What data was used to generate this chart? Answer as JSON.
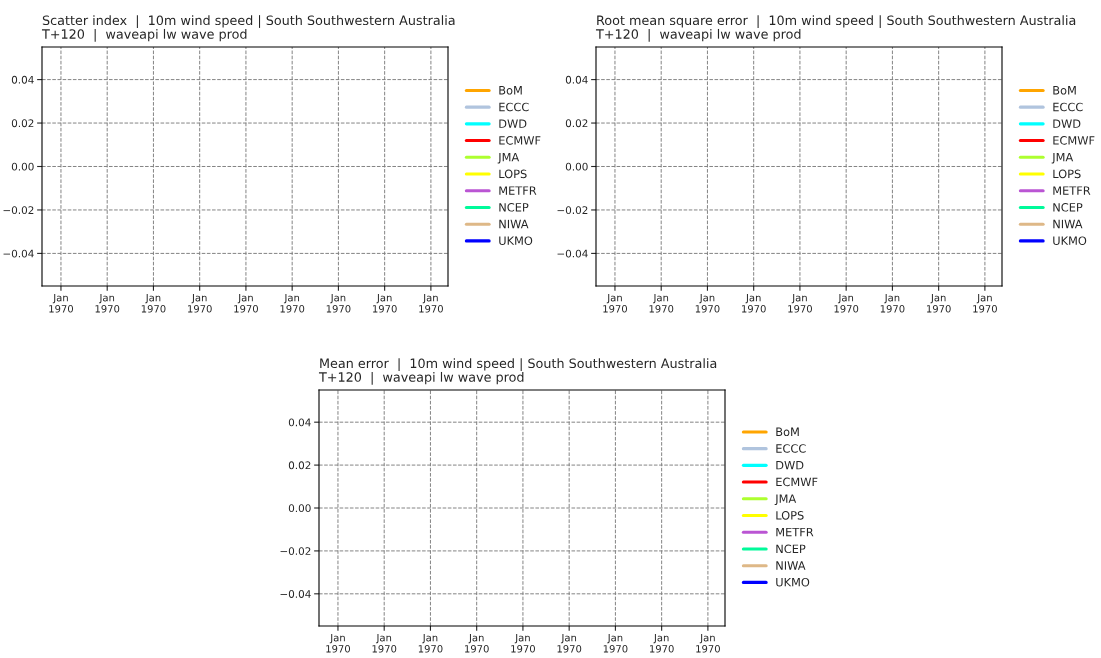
{
  "chart_data": [
    {
      "type": "line",
      "title": "Scatter index  |  10m wind speed | South Southwestern Australia\nT+120  |  waveapi lw wave prod",
      "categories": [
        "Jan\n1970",
        "Jan\n1970",
        "Jan\n1970",
        "Jan\n1970",
        "Jan\n1970",
        "Jan\n1970",
        "Jan\n1970",
        "Jan\n1970",
        "Jan\n1970"
      ],
      "series": [
        {
          "name": "BoM",
          "color": "#ffa500",
          "values": [
            null,
            null,
            null,
            null,
            null,
            null,
            null,
            null,
            null
          ]
        },
        {
          "name": "ECCC",
          "color": "#b0c4de",
          "values": [
            null,
            null,
            null,
            null,
            null,
            null,
            null,
            null,
            null
          ]
        },
        {
          "name": "DWD",
          "color": "#00ffff",
          "values": [
            null,
            null,
            null,
            null,
            null,
            null,
            null,
            null,
            null
          ]
        },
        {
          "name": "ECMWF",
          "color": "#ff0000",
          "values": [
            null,
            null,
            null,
            null,
            null,
            null,
            null,
            null,
            null
          ]
        },
        {
          "name": "JMA",
          "color": "#adff2f",
          "values": [
            null,
            null,
            null,
            null,
            null,
            null,
            null,
            null,
            null
          ]
        },
        {
          "name": "LOPS",
          "color": "#ffff00",
          "values": [
            null,
            null,
            null,
            null,
            null,
            null,
            null,
            null,
            null
          ]
        },
        {
          "name": "METFR",
          "color": "#ba55d3",
          "values": [
            null,
            null,
            null,
            null,
            null,
            null,
            null,
            null,
            null
          ]
        },
        {
          "name": "NCEP",
          "color": "#00fa9a",
          "values": [
            null,
            null,
            null,
            null,
            null,
            null,
            null,
            null,
            null
          ]
        },
        {
          "name": "NIWA",
          "color": "#deb887",
          "values": [
            null,
            null,
            null,
            null,
            null,
            null,
            null,
            null,
            null
          ]
        },
        {
          "name": "UKMO",
          "color": "#0000ff",
          "values": [
            null,
            null,
            null,
            null,
            null,
            null,
            null,
            null,
            null
          ]
        }
      ],
      "ylim": [
        -0.055,
        0.055
      ],
      "yticks": [
        {
          "value": -0.04,
          "label": "−0.04"
        },
        {
          "value": -0.02,
          "label": "−0.02"
        },
        {
          "value": 0,
          "label": "0.00"
        },
        {
          "value": 0.02,
          "label": "0.02"
        },
        {
          "value": 0.04,
          "label": "0.04"
        }
      ],
      "grid": true,
      "legend": "right"
    },
    {
      "type": "line",
      "title": "Root mean square error  |  10m wind speed | South Southwestern Australia\nT+120  |  waveapi lw wave prod",
      "categories": [
        "Jan\n1970",
        "Jan\n1970",
        "Jan\n1970",
        "Jan\n1970",
        "Jan\n1970",
        "Jan\n1970",
        "Jan\n1970",
        "Jan\n1970",
        "Jan\n1970"
      ],
      "series": [
        {
          "name": "BoM",
          "color": "#ffa500",
          "values": [
            null,
            null,
            null,
            null,
            null,
            null,
            null,
            null,
            null
          ]
        },
        {
          "name": "ECCC",
          "color": "#b0c4de",
          "values": [
            null,
            null,
            null,
            null,
            null,
            null,
            null,
            null,
            null
          ]
        },
        {
          "name": "DWD",
          "color": "#00ffff",
          "values": [
            null,
            null,
            null,
            null,
            null,
            null,
            null,
            null,
            null
          ]
        },
        {
          "name": "ECMWF",
          "color": "#ff0000",
          "values": [
            null,
            null,
            null,
            null,
            null,
            null,
            null,
            null,
            null
          ]
        },
        {
          "name": "JMA",
          "color": "#adff2f",
          "values": [
            null,
            null,
            null,
            null,
            null,
            null,
            null,
            null,
            null
          ]
        },
        {
          "name": "LOPS",
          "color": "#ffff00",
          "values": [
            null,
            null,
            null,
            null,
            null,
            null,
            null,
            null,
            null
          ]
        },
        {
          "name": "METFR",
          "color": "#ba55d3",
          "values": [
            null,
            null,
            null,
            null,
            null,
            null,
            null,
            null,
            null
          ]
        },
        {
          "name": "NCEP",
          "color": "#00fa9a",
          "values": [
            null,
            null,
            null,
            null,
            null,
            null,
            null,
            null,
            null
          ]
        },
        {
          "name": "NIWA",
          "color": "#deb887",
          "values": [
            null,
            null,
            null,
            null,
            null,
            null,
            null,
            null,
            null
          ]
        },
        {
          "name": "UKMO",
          "color": "#0000ff",
          "values": [
            null,
            null,
            null,
            null,
            null,
            null,
            null,
            null,
            null
          ]
        }
      ],
      "ylim": [
        -0.055,
        0.055
      ],
      "yticks": [
        {
          "value": -0.04,
          "label": "−0.04"
        },
        {
          "value": -0.02,
          "label": "−0.02"
        },
        {
          "value": 0,
          "label": "0.00"
        },
        {
          "value": 0.02,
          "label": "0.02"
        },
        {
          "value": 0.04,
          "label": "0.04"
        }
      ],
      "grid": true,
      "legend": "right"
    },
    {
      "type": "line",
      "title": "Mean error  |  10m wind speed | South Southwestern Australia\nT+120  |  waveapi lw wave prod",
      "categories": [
        "Jan\n1970",
        "Jan\n1970",
        "Jan\n1970",
        "Jan\n1970",
        "Jan\n1970",
        "Jan\n1970",
        "Jan\n1970",
        "Jan\n1970",
        "Jan\n1970"
      ],
      "series": [
        {
          "name": "BoM",
          "color": "#ffa500",
          "values": [
            null,
            null,
            null,
            null,
            null,
            null,
            null,
            null,
            null
          ]
        },
        {
          "name": "ECCC",
          "color": "#b0c4de",
          "values": [
            null,
            null,
            null,
            null,
            null,
            null,
            null,
            null,
            null
          ]
        },
        {
          "name": "DWD",
          "color": "#00ffff",
          "values": [
            null,
            null,
            null,
            null,
            null,
            null,
            null,
            null,
            null
          ]
        },
        {
          "name": "ECMWF",
          "color": "#ff0000",
          "values": [
            null,
            null,
            null,
            null,
            null,
            null,
            null,
            null,
            null
          ]
        },
        {
          "name": "JMA",
          "color": "#adff2f",
          "values": [
            null,
            null,
            null,
            null,
            null,
            null,
            null,
            null,
            null
          ]
        },
        {
          "name": "LOPS",
          "color": "#ffff00",
          "values": [
            null,
            null,
            null,
            null,
            null,
            null,
            null,
            null,
            null
          ]
        },
        {
          "name": "METFR",
          "color": "#ba55d3",
          "values": [
            null,
            null,
            null,
            null,
            null,
            null,
            null,
            null,
            null
          ]
        },
        {
          "name": "NCEP",
          "color": "#00fa9a",
          "values": [
            null,
            null,
            null,
            null,
            null,
            null,
            null,
            null,
            null
          ]
        },
        {
          "name": "NIWA",
          "color": "#deb887",
          "values": [
            null,
            null,
            null,
            null,
            null,
            null,
            null,
            null,
            null
          ]
        },
        {
          "name": "UKMO",
          "color": "#0000ff",
          "values": [
            null,
            null,
            null,
            null,
            null,
            null,
            null,
            null,
            null
          ]
        }
      ],
      "ylim": [
        -0.055,
        0.055
      ],
      "yticks": [
        {
          "value": -0.04,
          "label": "−0.04"
        },
        {
          "value": -0.02,
          "label": "−0.02"
        },
        {
          "value": 0,
          "label": "0.00"
        },
        {
          "value": 0.02,
          "label": "0.02"
        },
        {
          "value": 0.04,
          "label": "0.04"
        }
      ],
      "grid": true,
      "legend": "right"
    }
  ]
}
